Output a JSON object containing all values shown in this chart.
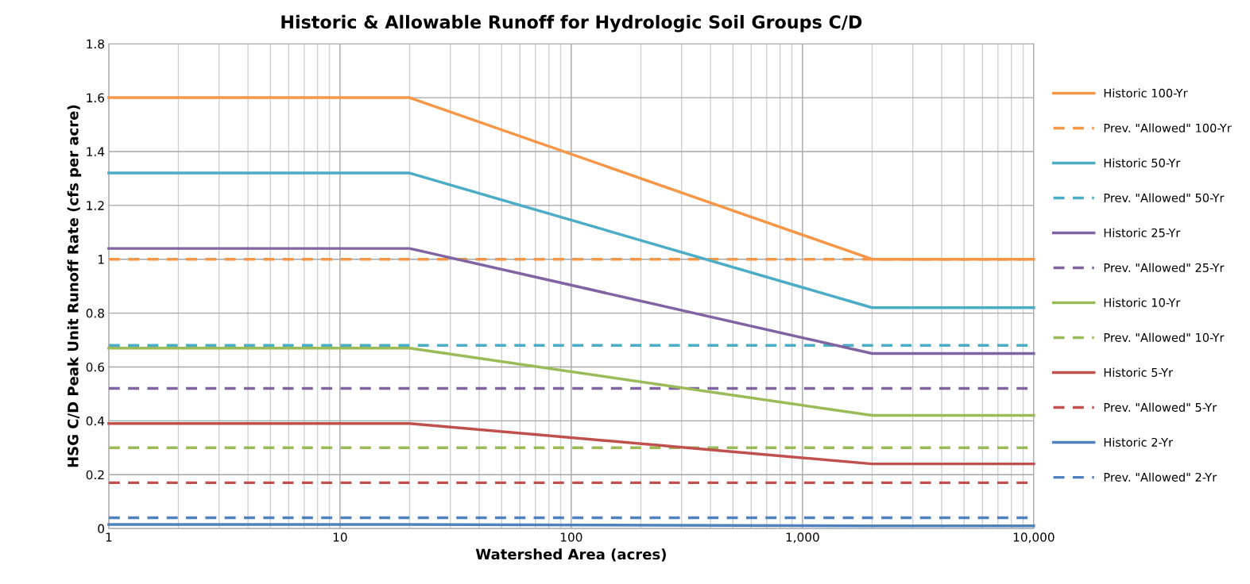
{
  "chart_data": {
    "type": "line",
    "title": "Historic & Allowable Runoff for Hydrologic Soil Groups C/D",
    "xlabel": "Watershed Area (acres)",
    "ylabel": "HSG C/D Peak Unit Runoff Rate (cfs per acre)",
    "x": [
      1,
      20,
      2000,
      10000
    ],
    "series": [
      {
        "name": "Historic 100-Yr",
        "color": "#f79646",
        "line_style": "solid",
        "values": [
          1.6,
          1.6,
          1.0,
          1.0
        ]
      },
      {
        "name": "Prev. \"Allowed\" 100-Yr",
        "color": "#f79646",
        "line_style": "dashed",
        "values": [
          1.0,
          1.0,
          1.0,
          1.0
        ]
      },
      {
        "name": "Historic 50-Yr",
        "color": "#4bacc6",
        "line_style": "solid",
        "values": [
          1.32,
          1.32,
          0.82,
          0.82
        ]
      },
      {
        "name": "Prev. \"Allowed\" 50-Yr",
        "color": "#4bacc6",
        "line_style": "dashed",
        "values": [
          0.68,
          0.68,
          0.68,
          0.68
        ]
      },
      {
        "name": "Historic 25-Yr",
        "color": "#8064a2",
        "line_style": "solid",
        "values": [
          1.04,
          1.04,
          0.65,
          0.65
        ]
      },
      {
        "name": "Prev. \"Allowed\" 25-Yr",
        "color": "#8064a2",
        "line_style": "dashed",
        "values": [
          0.52,
          0.52,
          0.52,
          0.52
        ]
      },
      {
        "name": "Historic 10-Yr",
        "color": "#9bbb59",
        "line_style": "solid",
        "values": [
          0.67,
          0.67,
          0.42,
          0.42
        ]
      },
      {
        "name": "Prev. \"Allowed\" 10-Yr",
        "color": "#9bbb59",
        "line_style": "dashed",
        "values": [
          0.3,
          0.3,
          0.3,
          0.3
        ]
      },
      {
        "name": "Historic 5-Yr",
        "color": "#c0504d",
        "line_style": "solid",
        "values": [
          0.39,
          0.39,
          0.24,
          0.24
        ]
      },
      {
        "name": "Prev. \"Allowed\" 5-Yr",
        "color": "#c0504d",
        "line_style": "dashed",
        "values": [
          0.17,
          0.17,
          0.17,
          0.17
        ]
      },
      {
        "name": "Historic 2-Yr",
        "color": "#4f81bd",
        "line_style": "solid",
        "values": [
          0.015,
          0.015,
          0.01,
          0.01
        ]
      },
      {
        "name": "Prev. \"Allowed\" 2-Yr",
        "color": "#4f81bd",
        "line_style": "dashed",
        "values": [
          0.04,
          0.04,
          0.04,
          0.04
        ]
      }
    ],
    "log": "x",
    "xlim": [
      1,
      10000
    ],
    "xticks": [
      1,
      10,
      100,
      {
        "value": 1000,
        "label": "1,000"
      },
      {
        "value": 10000,
        "label": "10,000"
      }
    ],
    "ylim": [
      0,
      1.8
    ],
    "yticks": [
      0,
      0.2,
      0.4,
      0.6,
      0.8,
      1,
      1.2,
      1.4,
      1.6,
      1.8
    ],
    "grid": true,
    "legend": "right",
    "marker": "none"
  }
}
